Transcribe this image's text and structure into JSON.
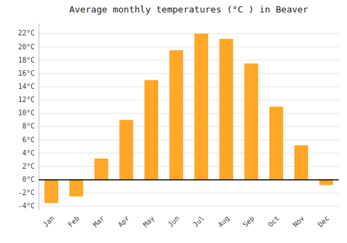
{
  "chart_data": {
    "type": "bar",
    "title": "Average monthly temperatures (°C ) in Beaver",
    "categories": [
      "Jan",
      "Feb",
      "Mar",
      "Apr",
      "May",
      "Jun",
      "Jul",
      "Aug",
      "Sep",
      "Oct",
      "Nov",
      "Dec"
    ],
    "values": [
      -3.5,
      -2.5,
      3.2,
      9.0,
      15.0,
      19.5,
      22.0,
      21.2,
      17.5,
      11.0,
      5.2,
      -0.8
    ],
    "color": "#FFA726",
    "ylim": [
      -4.5,
      23.5
    ],
    "yticks": [
      {
        "value": -4,
        "label": "-4°C"
      },
      {
        "value": -2,
        "label": "-2°C"
      },
      {
        "value": 0,
        "label": "0°C"
      },
      {
        "value": 2,
        "label": "2°C"
      },
      {
        "value": 4,
        "label": "4°C"
      },
      {
        "value": 6,
        "label": "6°C"
      },
      {
        "value": 8,
        "label": "8°C"
      },
      {
        "value": 10,
        "label": "10°C"
      },
      {
        "value": 12,
        "label": "12°C"
      },
      {
        "value": 14,
        "label": "14°C"
      },
      {
        "value": 16,
        "label": "16°C"
      },
      {
        "value": 18,
        "label": "18°C"
      },
      {
        "value": 20,
        "label": "20°C"
      },
      {
        "value": 22,
        "label": "22°C"
      }
    ],
    "grid": true
  }
}
